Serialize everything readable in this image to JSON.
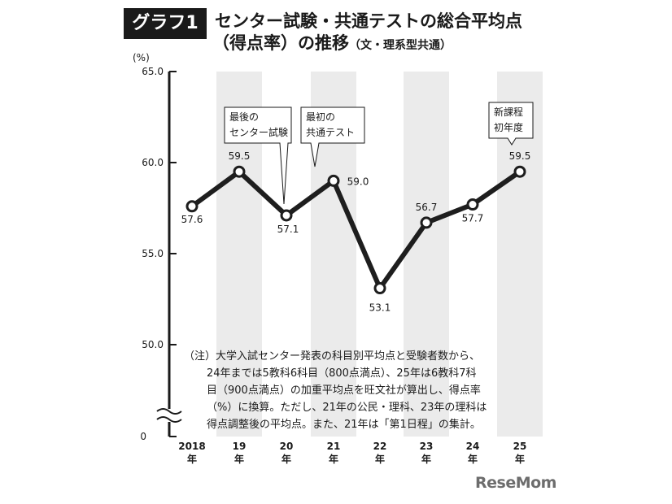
{
  "header": {
    "tag": "グラフ1",
    "title_line1": "センター試験・共通テストの総合平均点",
    "title_line2_main": "（得点率）の推移",
    "title_line2_sub": "（文・理系型共通）"
  },
  "chart_data": {
    "type": "line",
    "title": "センター試験・共通テストの総合平均点（得点率）の推移（文・理系型共通）",
    "yunit": "(%)",
    "ylim": [
      50.0,
      65.0
    ],
    "y_ticks": [
      "65.0",
      "60.0",
      "55.0",
      "50.0"
    ],
    "y_bottom_label": "0",
    "axis_break": true,
    "x_year_labels": [
      "2018",
      "19",
      "20",
      "21",
      "22",
      "23",
      "24",
      "25"
    ],
    "x_suffix": "年",
    "values": [
      57.6,
      59.5,
      57.1,
      59.0,
      53.1,
      56.7,
      57.7,
      59.5
    ],
    "value_labels": [
      "57.6",
      "59.5",
      "57.1",
      "59.0",
      "53.1",
      "56.7",
      "57.7",
      "59.5"
    ],
    "callouts": [
      {
        "index": 2,
        "lines": [
          "最後の",
          "センター試験"
        ]
      },
      {
        "index": 3,
        "lines": [
          "最初の",
          "共通テスト"
        ]
      },
      {
        "index": 7,
        "lines": [
          "新課程",
          "初年度"
        ]
      }
    ],
    "grid": false,
    "alternating_bands": true,
    "colors": {
      "line": "#1e1e1e",
      "band": "#ebebeb",
      "marker_fill": "#ffffff"
    }
  },
  "note": {
    "lines": [
      "（注）大学入試センター発表の科目別平均点と受験者数から、",
      "24年までは5教科6科目（800点満点）、25年は6教科7科",
      "目（900点満点）の加重平均点を旺文社が算出し、得点率",
      "（%）に換算。ただし、21年の公民・理科、23年の理科は",
      "得点調整後の平均点。また、21年は「第1日程」の集計。"
    ]
  },
  "logo": {
    "text": "ReseMom"
  }
}
